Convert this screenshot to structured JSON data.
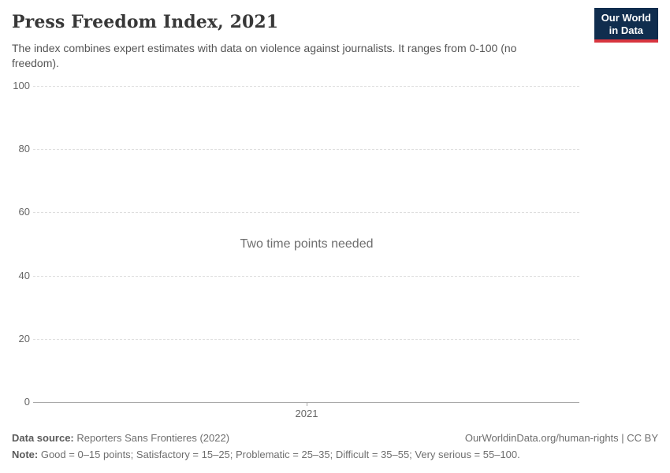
{
  "header": {
    "title": "Press Freedom Index, 2021",
    "subtitle": "The index combines expert estimates with data on violence against journalists. It ranges from 0-100 (no freedom)."
  },
  "logo": {
    "line1": "Our World",
    "line2": "in Data",
    "background_color": "#102d4e",
    "accent_color": "#d8353f"
  },
  "chart_data": {
    "type": "line",
    "title": "Press Freedom Index, 2021",
    "message": "Two time points needed",
    "series": [],
    "x": [
      2021
    ],
    "xticks": [
      "2021"
    ],
    "yticks": [
      0,
      20,
      40,
      60,
      80,
      100
    ],
    "ylim": [
      0,
      100
    ],
    "xlabel": "",
    "ylabel": "",
    "grid": "horizontal-dashed",
    "legend_position": "none",
    "colors": {
      "gridline": "#dedede",
      "axis": "#a8a8a8",
      "tick_label": "#666666"
    }
  },
  "footer": {
    "datasource_label": "Data source:",
    "datasource_value": "Reporters Sans Frontieres (2022)",
    "link_text": "OurWorldinData.org/human-rights | CC BY",
    "note_label": "Note:",
    "note_value": "Good = 0–15 points; Satisfactory = 15–25; Problematic = 25–35; Difficult = 35–55; Very serious = 55–100."
  }
}
